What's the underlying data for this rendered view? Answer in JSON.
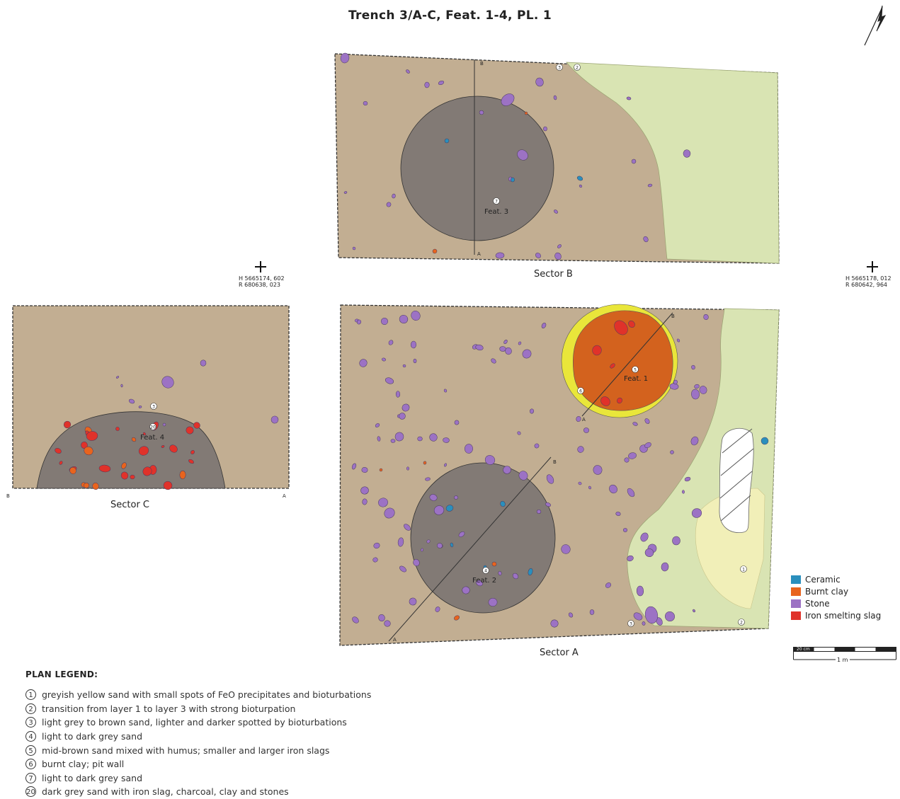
{
  "title": "Trench 3/A-C, Feat. 1-4, PL. 1",
  "sectors": {
    "b_label": "Sector B",
    "a_label": "Sector A",
    "c_label": "Sector C"
  },
  "features": {
    "feat1": "Feat. 1",
    "feat2": "Feat. 2",
    "feat3": "Feat. 3",
    "feat4": "Feat. 4"
  },
  "section_marks": {
    "a": "A",
    "b": "B"
  },
  "layer_numbers": [
    "1",
    "2",
    "3",
    "4",
    "5",
    "6",
    "7",
    "20"
  ],
  "coordinates": {
    "left": {
      "h": "H 5665174, 602",
      "r": "R 680638, 023"
    },
    "right": {
      "h": "H 5665178, 012",
      "r": "R 680642, 964"
    }
  },
  "finds_legend": [
    {
      "label": "Ceramic",
      "color": "#2a8fbd"
    },
    {
      "label": "Burnt clay",
      "color": "#e8641e"
    },
    {
      "label": "Stone",
      "color": "#9c72c4"
    },
    {
      "label": "Iron smelting slag",
      "color": "#e0322a"
    }
  ],
  "plan_legend": {
    "title": "PLAN LEGEND:",
    "items": [
      {
        "num": "1",
        "text": "greyish yellow sand with small spots of FeO precipitates and bioturbations"
      },
      {
        "num": "2",
        "text": "transition from layer 1 to layer 3 with strong bioturpation"
      },
      {
        "num": "3",
        "text": "light grey to brown sand, lighter and darker spotted by bioturbations"
      },
      {
        "num": "4",
        "text": "light to dark grey sand"
      },
      {
        "num": "5",
        "text": "mid-brown sand mixed with humus; smaller and larger iron slags"
      },
      {
        "num": "6",
        "text": "burnt clay; pit wall"
      },
      {
        "num": "7",
        "text": "light to dark grey sand"
      },
      {
        "num": "20",
        "text": "dark grey sand with iron slag, charcoal, clay and stones"
      }
    ]
  },
  "scale": {
    "small": "20 cm",
    "large": "1 m"
  },
  "colors": {
    "brown_sand": "#c2ae92",
    "grey_pit": "#827a75",
    "green_sand": "#d9e4b3",
    "pale_yellow": "#f1efb8",
    "burnt_clay": "#d3621e",
    "yellow_wall": "#e9e63a",
    "stone": "#9c72c4"
  },
  "icons": {
    "north": "north-arrow-icon",
    "grid_point": "crosshair-icon"
  }
}
